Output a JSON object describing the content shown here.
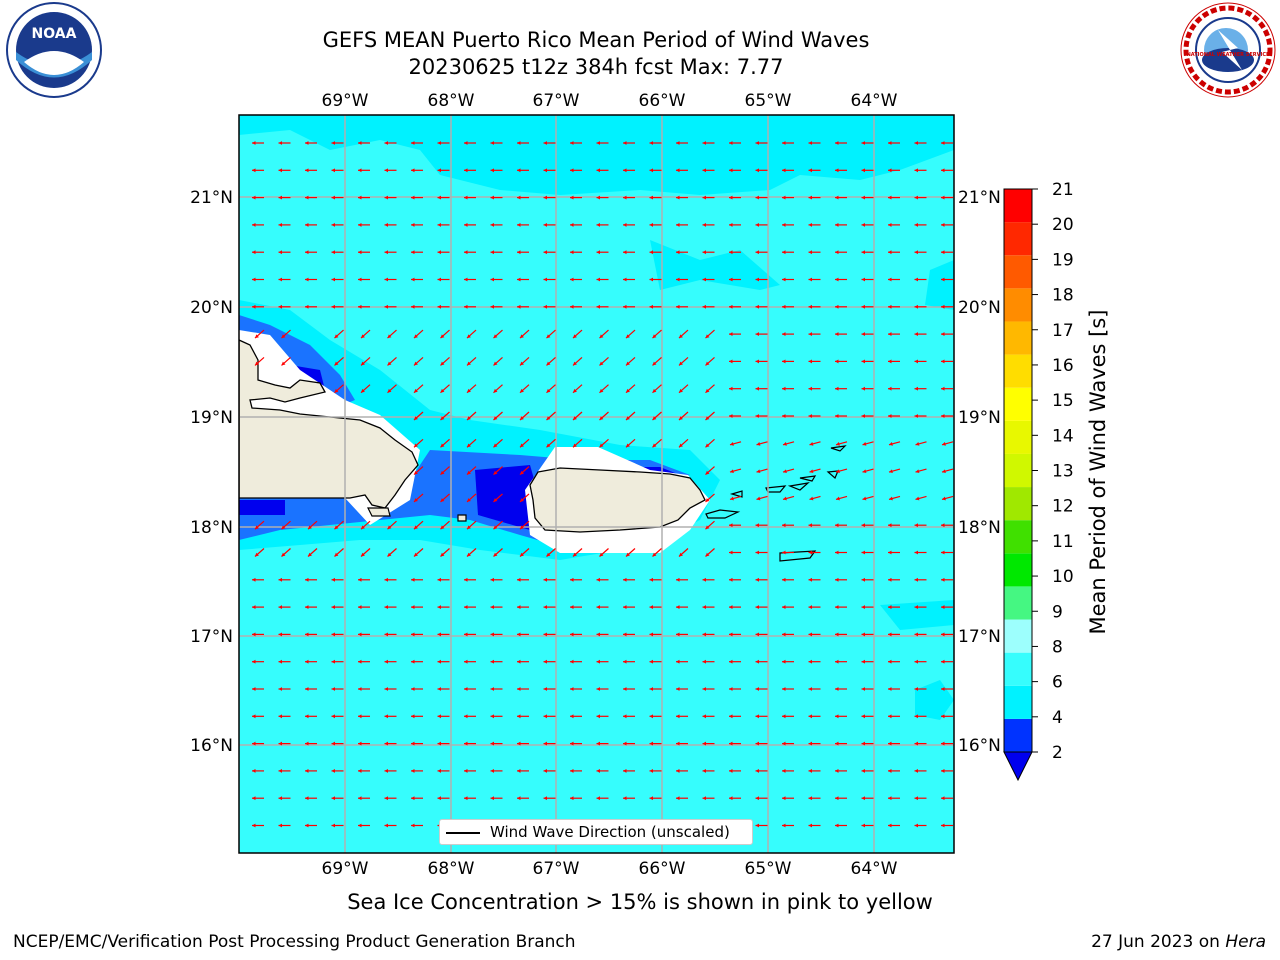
{
  "header": {
    "title_line1": "GEFS MEAN Puerto Rico Mean Period of Wind Waves",
    "title_line2": "20230625 t12z 384h fcst   Max: 7.77"
  },
  "logos": {
    "left": "noaa-logo",
    "right": "national-weather-service-logo",
    "left_text": "NOAA",
    "right_text": "NATIONAL WEATHER SERVICE"
  },
  "map": {
    "longitude_labels": [
      "69°W",
      "68°W",
      "67°W",
      "66°W",
      "65°W",
      "64°W"
    ],
    "latitude_labels": [
      "21°N",
      "20°N",
      "19°N",
      "18°N",
      "17°N",
      "16°N"
    ],
    "legend_label": "Wind Wave Direction (unscaled)",
    "arrow_color": "#ff0000",
    "land_color": "#efecdc",
    "gridline_color": "#b0b0b0",
    "wind_direction": "from east (arrows point west)"
  },
  "colorbar": {
    "title": "Mean Period of Wind Waves [s]",
    "ticks": [
      "2",
      "4",
      "6",
      "8",
      "9",
      "10",
      "11",
      "12",
      "13",
      "14",
      "15",
      "16",
      "17",
      "18",
      "19",
      "20",
      "21"
    ],
    "colors": [
      "#0033ff",
      "#00f2ff",
      "#36fdfd",
      "#9dfffd",
      "#45f782",
      "#00e800",
      "#40e000",
      "#a0e800",
      "#d0f800",
      "#e8f800",
      "#ffff00",
      "#ffdd00",
      "#ffb800",
      "#ff8c00",
      "#ff5a00",
      "#ff2800",
      "#ff0000"
    ],
    "below_color": "#0000ee"
  },
  "chart_data": {
    "type": "heatmap",
    "title": "GEFS MEAN Puerto Rico Mean Period of Wind Waves",
    "subtitle": "20230625 t12z 384h fcst   Max: 7.77",
    "variable": "Mean Period of Wind Waves [s]",
    "max_value": 7.77,
    "lon_range": [
      -70,
      -63.3
    ],
    "lat_range": [
      15,
      21.75
    ],
    "colorbar_range": [
      2,
      21
    ],
    "grid": true
  },
  "footer": {
    "note": "Sea Ice Concentration > 15% is shown in pink to yellow",
    "left": "NCEP/EMC/Verification Post Processing Product Generation Branch",
    "date": "27 Jun 2023 on ",
    "host": "Hera"
  }
}
